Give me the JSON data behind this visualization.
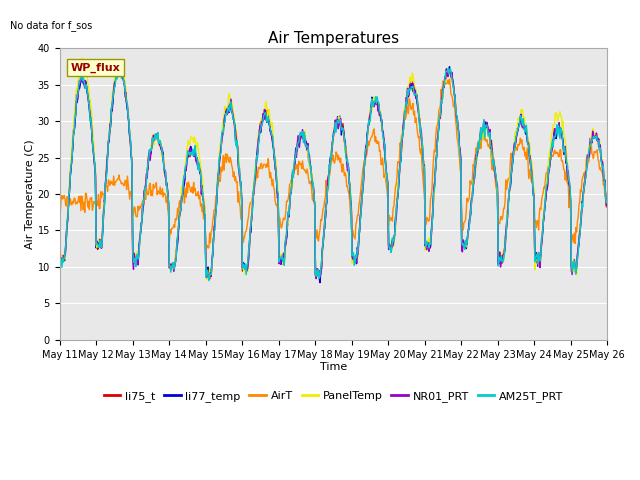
{
  "title": "Air Temperatures",
  "xlabel": "Time",
  "ylabel": "Air Temperature (C)",
  "note": "No data for f_sos",
  "legend_label": "WP_flux",
  "ylim": [
    0,
    40
  ],
  "yticks": [
    0,
    5,
    10,
    15,
    20,
    25,
    30,
    35,
    40
  ],
  "num_days": 15,
  "series": {
    "li75_t": {
      "color": "#dd0000",
      "lw": 1.0
    },
    "li77_temp": {
      "color": "#0000dd",
      "lw": 1.0
    },
    "AirT": {
      "color": "#ff8800",
      "lw": 1.0
    },
    "PanelTemp": {
      "color": "#eeee00",
      "lw": 1.0
    },
    "NR01_PRT": {
      "color": "#9900cc",
      "lw": 1.0
    },
    "AM25T_PRT": {
      "color": "#00cccc",
      "lw": 1.0
    }
  },
  "plot_bg_color": "#e8e8e8",
  "fig_bg_color": "#ffffff",
  "grid_color": "#ffffff",
  "xtick_labels": [
    "May 11",
    "May 12",
    "May 13",
    "May 14",
    "May 15",
    "May 16",
    "May 17",
    "May 18",
    "May 19",
    "May 20",
    "May 21",
    "May 22",
    "May 23",
    "May 24",
    "May 25",
    "May 26"
  ],
  "title_fontsize": 11,
  "label_fontsize": 8,
  "tick_fontsize": 7,
  "legend_fontsize": 8
}
